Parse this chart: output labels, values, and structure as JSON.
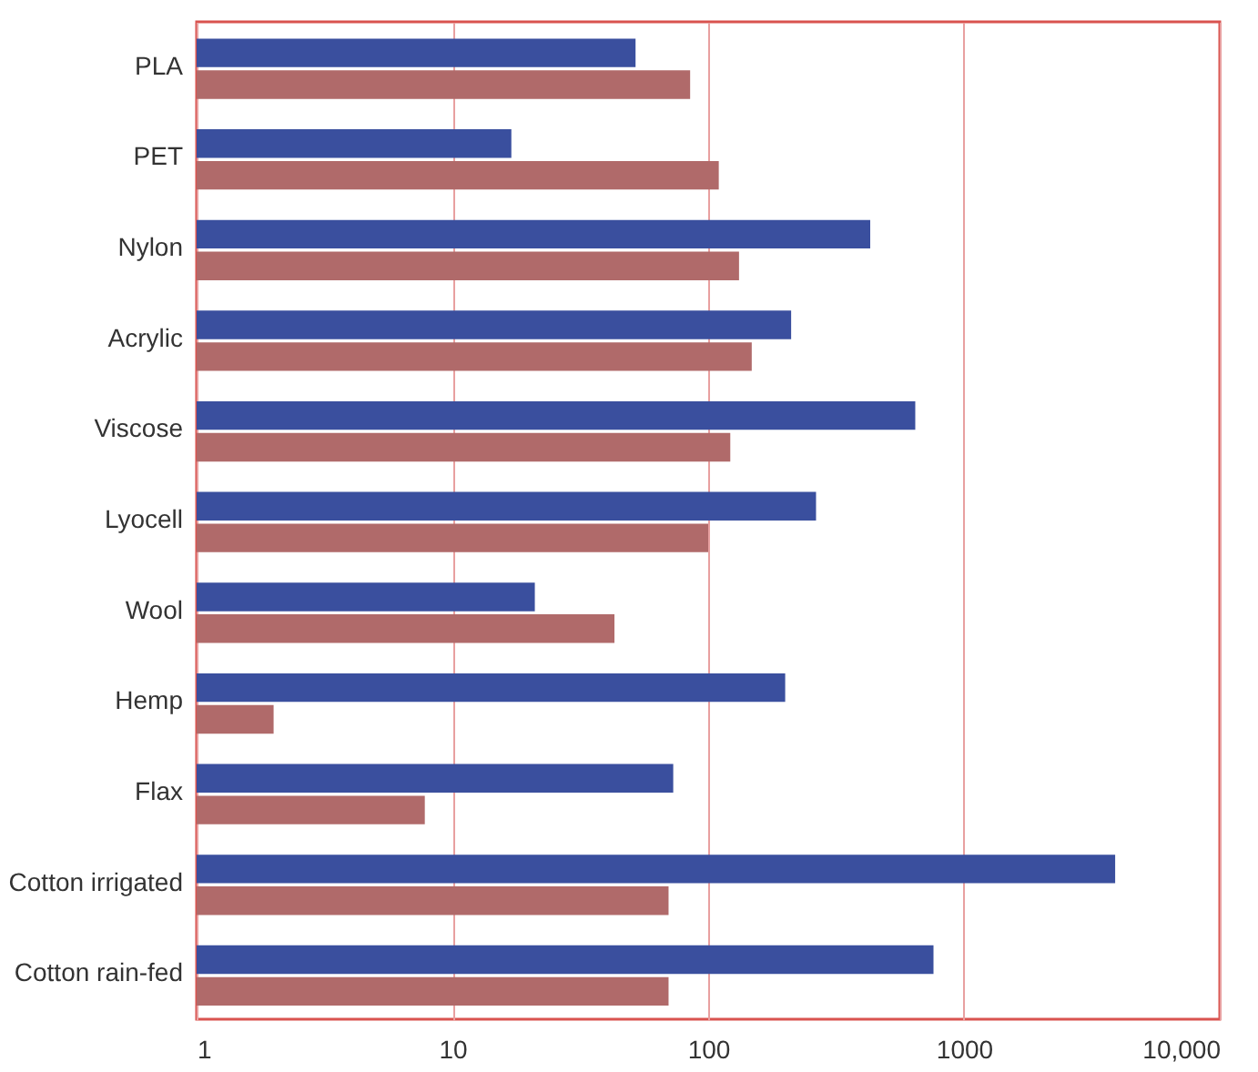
{
  "chart_data": {
    "type": "bar",
    "orientation": "horizontal",
    "log": "x",
    "grid": "x",
    "legend": false,
    "categories": [
      "PLA",
      "PET",
      "Nylon",
      "Acrylic",
      "Viscose",
      "Lyocell",
      "Wool",
      "Hemp",
      "Flax",
      "Cotton irrigated",
      "Cotton rain-fed"
    ],
    "series": [
      {
        "color": "#3a4f9e",
        "values": [
          52,
          17,
          430,
          211,
          645,
          264,
          21,
          200,
          73,
          3900,
          760
        ]
      },
      {
        "color": "#b06a6a",
        "values": [
          85,
          110,
          132,
          148,
          122,
          100,
          43,
          2,
          7.8,
          70,
          70
        ]
      }
    ],
    "xlim": [
      1,
      10000
    ],
    "xticks": [
      1,
      10,
      100,
      1000,
      {
        "value": 10000,
        "label": "10,000"
      }
    ]
  }
}
